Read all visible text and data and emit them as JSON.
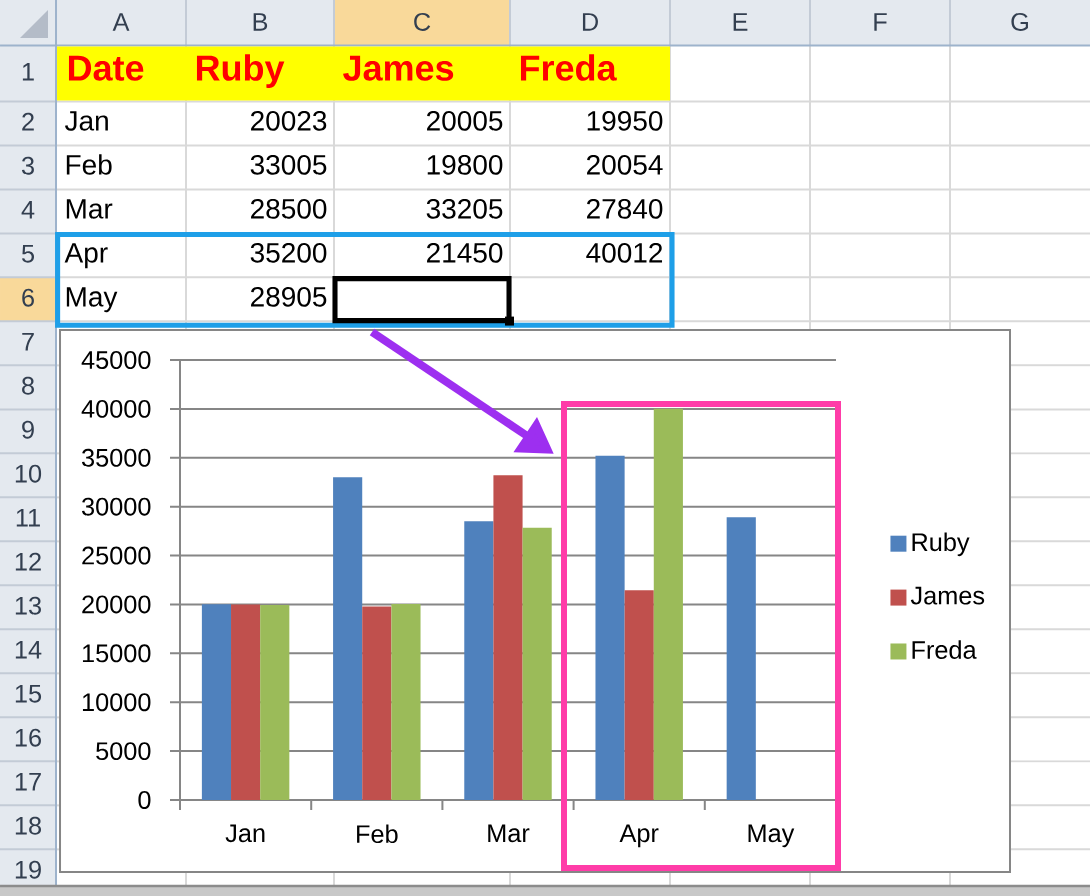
{
  "chart_data": {
    "type": "bar",
    "categories": [
      "Jan",
      "Feb",
      "Mar",
      "Apr",
      "May"
    ],
    "series": [
      {
        "name": "Ruby",
        "color": "#4f81bd",
        "values": [
          20023,
          33005,
          28500,
          35200,
          28905
        ]
      },
      {
        "name": "James",
        "color": "#c0504d",
        "values": [
          20005,
          19800,
          33205,
          21450,
          null
        ]
      },
      {
        "name": "Freda",
        "color": "#9bbb59",
        "values": [
          19950,
          20054,
          27840,
          40012,
          null
        ]
      }
    ],
    "ylim": [
      0,
      45000
    ],
    "yticks": [
      0,
      5000,
      10000,
      15000,
      20000,
      25000,
      30000,
      35000,
      40000,
      45000
    ],
    "grid": "y",
    "legend": "right",
    "annotations": [
      "A",
      "B",
      "C",
      "D",
      "E",
      "F",
      "G",
      "1",
      "2",
      "3",
      "4",
      "5",
      "6",
      "7",
      "8",
      "9",
      "10",
      "11",
      "12",
      "13",
      "14",
      "15",
      "16",
      "17",
      "18",
      "19",
      "Date",
      "20023",
      "20005",
      "19950",
      "33005",
      "19800",
      "20054",
      "28500",
      "33205",
      "27840",
      "35200",
      "21450",
      "40012",
      "28905"
    ]
  }
}
